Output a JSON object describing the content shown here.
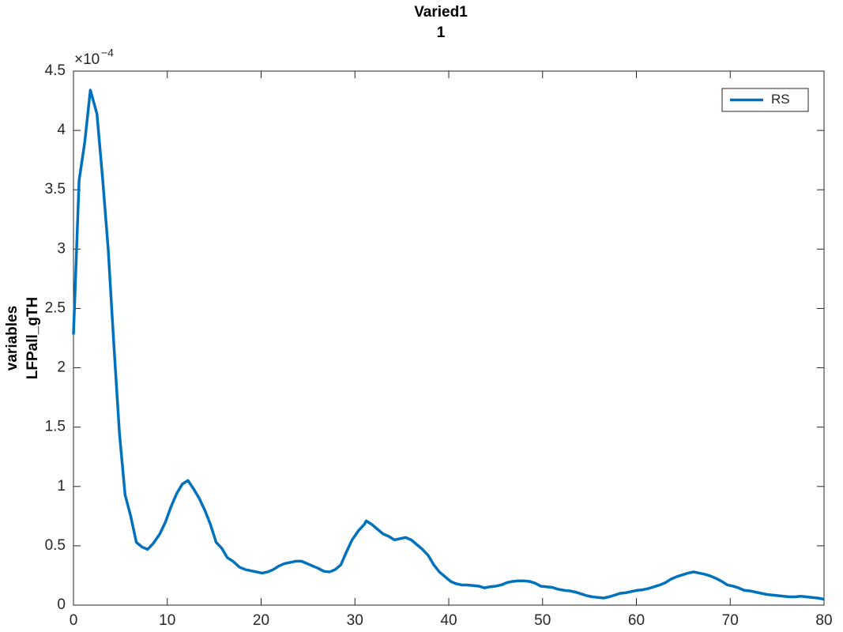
{
  "chart_data": {
    "type": "line",
    "title": [
      "Varied1",
      "1"
    ],
    "y_label": [
      "variables",
      "LFPall_gTH"
    ],
    "y_exponent_base": "×10",
    "y_exponent": "−4",
    "x": [
      0,
      0.6,
      1.2,
      1.8,
      2.5,
      3.1,
      3.7,
      4.3,
      4.9,
      5.5,
      6.1,
      6.7,
      7.3,
      7.9,
      8.5,
      9.2,
      9.8,
      10.4,
      11.0,
      11.6,
      12.2,
      12.8,
      13.4,
      14.0,
      14.6,
      15.2,
      15.8,
      16.4,
      17.0,
      17.7,
      18.3,
      18.9,
      19.5,
      20.1,
      20.7,
      21.3,
      21.9,
      22.5,
      23.1,
      23.7,
      24.3,
      24.9,
      25.5,
      26.1,
      26.7,
      27.3,
      27.9,
      28.5,
      29.1,
      29.7,
      30.4,
      31.0,
      31.2,
      31.8,
      32.4,
      33.0,
      33.6,
      34.2,
      34.8,
      35.4,
      36.0,
      36.6,
      37.2,
      37.8,
      38.4,
      39.0,
      39.6,
      40.2,
      40.8,
      41.4,
      42.0,
      42.6,
      43.2,
      43.8,
      44.4,
      45.0,
      45.6,
      46.2,
      46.8,
      47.4,
      48.0,
      48.6,
      49.2,
      49.8,
      50.4,
      51.0,
      51.6,
      52.3,
      52.9,
      53.5,
      54.1,
      54.7,
      55.3,
      55.9,
      56.5,
      57.1,
      57.7,
      58.3,
      58.9,
      59.5,
      60.1,
      60.7,
      61.3,
      61.9,
      62.5,
      63.1,
      63.7,
      64.3,
      64.9,
      65.5,
      66.1,
      66.7,
      67.3,
      67.9,
      68.5,
      69.1,
      69.7,
      70.3,
      70.9,
      71.5,
      72.1,
      72.7,
      73.3,
      73.9,
      74.5,
      75.1,
      75.7,
      76.3,
      76.9,
      77.5,
      78.1,
      78.7,
      79.3,
      80
    ],
    "series": [
      {
        "name": "RS",
        "color": "#0072bd",
        "values": [
          2.28,
          3.58,
          3.9,
          4.34,
          4.14,
          3.6,
          3.0,
          2.2,
          1.45,
          0.93,
          0.75,
          0.53,
          0.49,
          0.47,
          0.52,
          0.6,
          0.7,
          0.83,
          0.94,
          1.02,
          1.05,
          0.98,
          0.9,
          0.8,
          0.68,
          0.53,
          0.48,
          0.4,
          0.37,
          0.32,
          0.3,
          0.29,
          0.28,
          0.27,
          0.28,
          0.3,
          0.33,
          0.35,
          0.36,
          0.37,
          0.37,
          0.35,
          0.33,
          0.31,
          0.285,
          0.28,
          0.3,
          0.34,
          0.45,
          0.55,
          0.63,
          0.68,
          0.71,
          0.68,
          0.64,
          0.6,
          0.58,
          0.55,
          0.56,
          0.57,
          0.55,
          0.51,
          0.47,
          0.42,
          0.34,
          0.28,
          0.24,
          0.2,
          0.18,
          0.17,
          0.17,
          0.165,
          0.16,
          0.145,
          0.155,
          0.16,
          0.17,
          0.19,
          0.2,
          0.205,
          0.205,
          0.2,
          0.185,
          0.16,
          0.155,
          0.15,
          0.135,
          0.125,
          0.12,
          0.11,
          0.095,
          0.08,
          0.07,
          0.065,
          0.06,
          0.07,
          0.085,
          0.1,
          0.105,
          0.115,
          0.125,
          0.13,
          0.14,
          0.155,
          0.17,
          0.19,
          0.22,
          0.24,
          0.255,
          0.27,
          0.28,
          0.27,
          0.26,
          0.245,
          0.225,
          0.2,
          0.17,
          0.16,
          0.145,
          0.125,
          0.12,
          0.11,
          0.1,
          0.09,
          0.085,
          0.08,
          0.075,
          0.07,
          0.07,
          0.075,
          0.07,
          0.065,
          0.06,
          0.05
        ]
      }
    ],
    "xlim": [
      0,
      80
    ],
    "xticks": [
      0,
      10,
      20,
      30,
      40,
      50,
      60,
      70,
      80
    ],
    "ylim": [
      0,
      4.5
    ],
    "yticks": [
      0,
      0.5,
      1,
      1.5,
      2,
      2.5,
      3,
      3.5,
      4,
      4.5
    ],
    "grid": false,
    "legend": "northeast"
  }
}
